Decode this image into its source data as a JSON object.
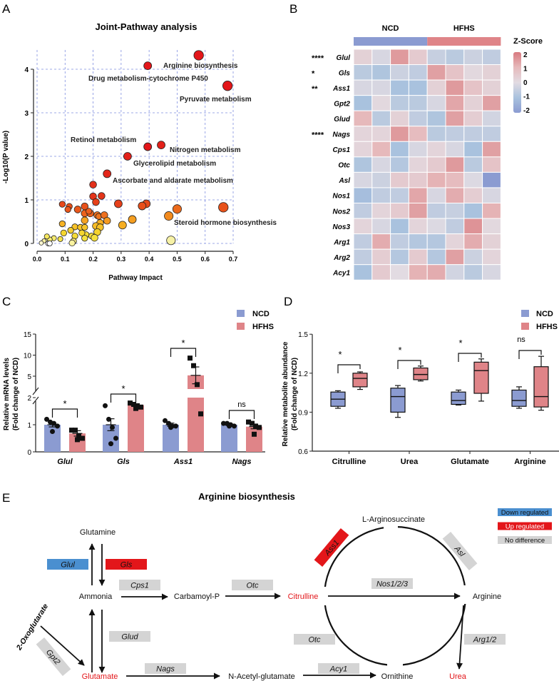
{
  "panel_labels": {
    "a": "A",
    "b": "B",
    "c": "C",
    "d": "D",
    "e": "E"
  },
  "chart_data": [
    {
      "id": "A",
      "type": "scatter",
      "title": "Joint-Pathway analysis",
      "xlabel": "Pathway Impact",
      "ylabel": "-Log10(P value)",
      "xlim": [
        0,
        0.7
      ],
      "ylim": [
        0,
        4.4
      ],
      "xticks": [
        "0.0",
        "0.1",
        "0.2",
        "0.3",
        "0.4",
        "0.5",
        "0.6",
        "0.7"
      ],
      "yticks": [
        "0",
        "1",
        "2",
        "3",
        "4"
      ],
      "grid": true,
      "points": [
        {
          "x": 0.577,
          "y": 4.32,
          "size": 5,
          "color": "#e3161a",
          "label": "Arginine biosynthesis"
        },
        {
          "x": 0.395,
          "y": 4.08,
          "size": 4,
          "color": "#e3161a",
          "label": "Drug metabolism-cytochrome P450"
        },
        {
          "x": 0.68,
          "y": 3.62,
          "size": 5,
          "color": "#e3161a",
          "label": "Pyruvate metabolism"
        },
        {
          "x": 0.395,
          "y": 2.22,
          "size": 4,
          "color": "#e3161a",
          "label": "Retinol metabolism"
        },
        {
          "x": 0.443,
          "y": 2.26,
          "size": 4,
          "color": "#e3211a",
          "label": "Nitrogen metabolism"
        },
        {
          "x": 0.323,
          "y": 2.0,
          "size": 4,
          "color": "#e3211a",
          "label": "Glycerolipid metabolism"
        },
        {
          "x": 0.25,
          "y": 1.6,
          "size": 4,
          "color": "#e3261a",
          "label": "Ascorbate and aldarate metabolism"
        },
        {
          "x": 0.665,
          "y": 0.83,
          "size": 5,
          "color": "#e8521a",
          "label": "Steroid hormone biosynthesis"
        },
        {
          "x": 0.2,
          "y": 1.35,
          "size": 3.5,
          "color": "#e3301a"
        },
        {
          "x": 0.2,
          "y": 1.08,
          "size": 3.5,
          "color": "#e3341a"
        },
        {
          "x": 0.23,
          "y": 1.09,
          "size": 3.5,
          "color": "#e3341a"
        },
        {
          "x": 0.21,
          "y": 0.95,
          "size": 3.5,
          "color": "#e6401a"
        },
        {
          "x": 0.29,
          "y": 0.91,
          "size": 4,
          "color": "#e6401a"
        },
        {
          "x": 0.39,
          "y": 0.91,
          "size": 4,
          "color": "#e6481a"
        },
        {
          "x": 0.375,
          "y": 0.86,
          "size": 4,
          "color": "#e84e1a"
        },
        {
          "x": 0.5,
          "y": 0.79,
          "size": 4.5,
          "color": "#ec6a1c"
        },
        {
          "x": 0.47,
          "y": 0.63,
          "size": 4.5,
          "color": "#f28a1e"
        },
        {
          "x": 0.34,
          "y": 0.55,
          "size": 4,
          "color": "#f59e20"
        },
        {
          "x": 0.305,
          "y": 0.42,
          "size": 4,
          "color": "#f6ae22"
        },
        {
          "x": 0.478,
          "y": 0.07,
          "size": 4.5,
          "color": "#f6f1a6"
        },
        {
          "x": 0.09,
          "y": 0.9,
          "size": 3,
          "color": "#e8481a"
        },
        {
          "x": 0.115,
          "y": 0.85,
          "size": 3,
          "color": "#e8501a"
        },
        {
          "x": 0.11,
          "y": 0.78,
          "size": 3,
          "color": "#ea561c"
        },
        {
          "x": 0.145,
          "y": 0.78,
          "size": 3.5,
          "color": "#ea581c"
        },
        {
          "x": 0.17,
          "y": 0.85,
          "size": 3.5,
          "color": "#e8501a"
        },
        {
          "x": 0.17,
          "y": 0.69,
          "size": 3.5,
          "color": "#ec621c"
        },
        {
          "x": 0.19,
          "y": 0.69,
          "size": 3.5,
          "color": "#ec621c"
        },
        {
          "x": 0.185,
          "y": 0.74,
          "size": 3,
          "color": "#ec5e1c"
        },
        {
          "x": 0.215,
          "y": 0.65,
          "size": 3.5,
          "color": "#ee701e"
        },
        {
          "x": 0.22,
          "y": 0.62,
          "size": 3,
          "color": "#ef741e"
        },
        {
          "x": 0.24,
          "y": 0.65,
          "size": 3.5,
          "color": "#ee701e"
        },
        {
          "x": 0.25,
          "y": 0.52,
          "size": 3.5,
          "color": "#f59a20"
        },
        {
          "x": 0.17,
          "y": 0.53,
          "size": 3.5,
          "color": "#f5a221"
        },
        {
          "x": 0.225,
          "y": 0.47,
          "size": 3.5,
          "color": "#f7b024"
        },
        {
          "x": 0.21,
          "y": 0.4,
          "size": 3.5,
          "color": "#f7bc26"
        },
        {
          "x": 0.225,
          "y": 0.37,
          "size": 3.5,
          "color": "#f7c228"
        },
        {
          "x": 0.215,
          "y": 0.26,
          "size": 3.5,
          "color": "#f5d22c"
        },
        {
          "x": 0.09,
          "y": 0.45,
          "size": 3,
          "color": "#f7b324"
        },
        {
          "x": 0.135,
          "y": 0.38,
          "size": 3,
          "color": "#f7c228"
        },
        {
          "x": 0.155,
          "y": 0.37,
          "size": 3,
          "color": "#f7c428"
        },
        {
          "x": 0.17,
          "y": 0.37,
          "size": 3,
          "color": "#f7c428"
        },
        {
          "x": 0.12,
          "y": 0.3,
          "size": 3,
          "color": "#f5cf2e"
        },
        {
          "x": 0.095,
          "y": 0.24,
          "size": 3,
          "color": "#f5d630"
        },
        {
          "x": 0.135,
          "y": 0.17,
          "size": 3,
          "color": "#f5dc36"
        },
        {
          "x": 0.175,
          "y": 0.2,
          "size": 3,
          "color": "#f5dc36"
        },
        {
          "x": 0.16,
          "y": 0.24,
          "size": 3,
          "color": "#f5d630"
        },
        {
          "x": 0.195,
          "y": 0.17,
          "size": 3,
          "color": "#f5de3a"
        },
        {
          "x": 0.205,
          "y": 0.13,
          "size": 3.5,
          "color": "#f5e03c"
        },
        {
          "x": 0.17,
          "y": 0.12,
          "size": 3,
          "color": "#f5e23e"
        },
        {
          "x": 0.13,
          "y": 0.05,
          "size": 3,
          "color": "#f7e87a"
        },
        {
          "x": 0.125,
          "y": 0.01,
          "size": 3,
          "color": "#fbf3a0"
        },
        {
          "x": 0.083,
          "y": 0.1,
          "size": 2.5,
          "color": "#f5e44a"
        },
        {
          "x": 0.06,
          "y": 0.12,
          "size": 2.5,
          "color": "#f7ec70"
        },
        {
          "x": 0.045,
          "y": 0.09,
          "size": 2.5,
          "color": "#f7ec70"
        },
        {
          "x": 0.035,
          "y": 0.16,
          "size": 2.5,
          "color": "#f7e860"
        },
        {
          "x": 0.025,
          "y": 0.06,
          "size": 2,
          "color": "#f9f0a0"
        },
        {
          "x": 0.015,
          "y": 0.01,
          "size": 2,
          "color": "#fff9d0"
        },
        {
          "x": 0.04,
          "y": 0.0,
          "size": 2.5,
          "color": "#ffffff"
        },
        {
          "x": 0.045,
          "y": 0.0,
          "size": 2.5,
          "color": "#ffffff"
        }
      ]
    },
    {
      "id": "B",
      "type": "heatmap",
      "groups": [
        {
          "name": "NCD",
          "color": "#8b9bd1",
          "n": 4
        },
        {
          "name": "HFHS",
          "color": "#df8488",
          "n": 4
        }
      ],
      "legend_title": "Z-Score",
      "scale_ticks": [
        "2",
        "1",
        "0",
        "-1",
        "-2"
      ],
      "zlim": [
        -2,
        2
      ],
      "rows": [
        {
          "gene": "Glul",
          "sig": "****",
          "z": [
            0.3,
            -0.2,
            1.5,
            0.5,
            -0.5,
            -0.7,
            -0.4,
            -0.6
          ]
        },
        {
          "gene": "Gls",
          "sig": "*",
          "z": [
            -0.7,
            -0.9,
            -0.4,
            -0.6,
            1.4,
            0.7,
            0.1,
            0.3
          ]
        },
        {
          "gene": "Ass1",
          "sig": "**",
          "z": [
            -0.2,
            -0.2,
            -1.0,
            -1.0,
            0.3,
            1.5,
            0.7,
            0.3
          ]
        },
        {
          "gene": "Gpt2",
          "sig": "",
          "z": [
            -1.0,
            0.1,
            -0.7,
            -0.7,
            -0.2,
            1.3,
            0.3,
            1.4
          ]
        },
        {
          "gene": "Glud",
          "sig": "",
          "z": [
            1.0,
            -0.7,
            0.3,
            -0.6,
            -0.9,
            1.4,
            0.4,
            -0.3
          ]
        },
        {
          "gene": "Nags",
          "sig": "****",
          "z": [
            0.2,
            0.2,
            1.5,
            0.9,
            -0.7,
            -0.6,
            -0.6,
            -0.6
          ]
        },
        {
          "gene": "Cps1",
          "sig": "",
          "z": [
            0.2,
            1.0,
            -1.0,
            -0.2,
            0.2,
            -0.2,
            -1.0,
            1.4
          ]
        },
        {
          "gene": "Otc",
          "sig": "",
          "z": [
            -0.9,
            -0.2,
            -0.8,
            0.2,
            0.5,
            1.5,
            -0.7,
            0.7
          ]
        },
        {
          "gene": "Asl",
          "sig": "",
          "z": [
            -0.2,
            -0.4,
            0.5,
            0.5,
            1.1,
            0.9,
            -0.1,
            -2.0
          ]
        },
        {
          "gene": "Nos1",
          "sig": "",
          "z": [
            -1.1,
            -0.6,
            -0.6,
            1.3,
            -0.2,
            1.2,
            0.4,
            -0.2
          ]
        },
        {
          "gene": "Nos2",
          "sig": "",
          "z": [
            -0.6,
            0.2,
            0.5,
            1.4,
            -0.6,
            -0.5,
            -1.0,
            1.1
          ]
        },
        {
          "gene": "Nos3",
          "sig": "",
          "z": [
            0.2,
            -0.2,
            -1.0,
            0.2,
            -0.1,
            -0.6,
            1.6,
            0.1
          ]
        },
        {
          "gene": "Arg1",
          "sig": "",
          "z": [
            -0.6,
            1.2,
            -0.6,
            -0.8,
            -0.8,
            0.2,
            1.2,
            0.3
          ]
        },
        {
          "gene": "Arg2",
          "sig": "",
          "z": [
            -0.6,
            0.4,
            -0.8,
            0.5,
            -0.8,
            1.4,
            -0.4,
            0.2
          ]
        },
        {
          "gene": "Acy1",
          "sig": "",
          "z": [
            -1.0,
            0.5,
            0.0,
            1.1,
            1.2,
            -0.3,
            -0.7,
            -0.2
          ]
        }
      ]
    },
    {
      "id": "C",
      "type": "bar",
      "ylabel": [
        "Relative mRNA levels",
        "(Fold change of NCD)"
      ],
      "categories": [
        "Glul",
        "Gls",
        "Ass1",
        "Nags"
      ],
      "yticks_lower": [
        "0",
        "1",
        "2"
      ],
      "yticks_upper": [
        "5",
        "10",
        "15"
      ],
      "axis_break": [
        2,
        2.5
      ],
      "legend": [
        {
          "name": "NCD",
          "color": "#8b9bd1"
        },
        {
          "name": "HFHS",
          "color": "#df8488"
        }
      ],
      "series": [
        {
          "name": "NCD",
          "values": [
            1.0,
            1.0,
            1.0,
            1.0
          ],
          "sem": [
            0.08,
            0.22,
            0.06,
            0.03
          ],
          "points": [
            [
              1.2,
              1.1,
              1.05,
              0.95,
              0.75
            ],
            [
              1.7,
              1.2,
              0.9,
              0.5,
              0.3
            ],
            [
              1.15,
              1.05,
              0.95,
              0.95,
              0.9
            ],
            [
              1.05,
              1.05,
              1.0,
              0.95,
              0.95
            ]
          ]
        },
        {
          "name": "HFHS",
          "values": [
            0.68,
            1.72,
            5.2,
            0.93
          ],
          "sem": [
            0.1,
            0.04,
            2.0,
            0.08
          ],
          "points": [
            [
              0.8,
              0.8,
              0.6,
              0.5,
              0.45
            ],
            [
              1.8,
              1.75,
              1.7,
              1.65,
              1.6
            ],
            [
              9.3,
              7.5,
              3.0,
              1.4
            ],
            [
              1.1,
              1.05,
              0.95,
              0.9,
              0.65
            ]
          ]
        }
      ],
      "significance": [
        "*",
        "*",
        "*",
        "ns"
      ]
    },
    {
      "id": "D",
      "type": "box",
      "ylabel": [
        "Relative metabolite abundance",
        "(Fold change of NCD)"
      ],
      "categories": [
        "Citrulline",
        "Urea",
        "Glutamate",
        "Arginine"
      ],
      "ylim": [
        0.6,
        1.5
      ],
      "yticks": [
        "0.6",
        "0.9",
        "1.2",
        "1.5"
      ],
      "legend": [
        {
          "name": "NCD",
          "color": "#8b9bd1"
        },
        {
          "name": "HFHS",
          "color": "#df8488"
        }
      ],
      "series": [
        {
          "name": "NCD",
          "boxes": [
            {
              "min": 0.93,
              "q1": 0.945,
              "median": 1.0,
              "q3": 1.055,
              "max": 1.065
            },
            {
              "min": 0.86,
              "q1": 0.9,
              "median": 1.02,
              "q3": 1.085,
              "max": 1.105
            },
            {
              "min": 0.955,
              "q1": 0.96,
              "median": 0.99,
              "q3": 1.055,
              "max": 1.07
            },
            {
              "min": 0.93,
              "q1": 0.945,
              "median": 0.99,
              "q3": 1.07,
              "max": 1.095
            }
          ]
        },
        {
          "name": "HFHS",
          "boxes": [
            {
              "min": 1.075,
              "q1": 1.095,
              "median": 1.16,
              "q3": 1.2,
              "max": 1.21
            },
            {
              "min": 1.14,
              "q1": 1.15,
              "median": 1.19,
              "q3": 1.24,
              "max": 1.255
            },
            {
              "min": 0.985,
              "q1": 1.045,
              "median": 1.22,
              "q3": 1.285,
              "max": 1.31
            },
            {
              "min": 0.915,
              "q1": 0.94,
              "median": 1.02,
              "q3": 1.25,
              "max": 1.33
            }
          ]
        }
      ],
      "significance": [
        "*",
        "*",
        "*",
        "ns"
      ]
    }
  ],
  "pathway": {
    "title": "Arginine biosynthesis",
    "legend": [
      {
        "label": "Down regulated",
        "color": "#4a8fd0"
      },
      {
        "label": "Up regulated",
        "color": "#e3161a"
      },
      {
        "label": "No difference",
        "color": "#d4d4d4"
      }
    ],
    "metabolites": {
      "glutamine": "Glutamine",
      "ammonia": "Ammonia",
      "glutamate": "Glutamate",
      "carbamoyl_p": "Carbamoyl-P",
      "citrulline": "Citrulline",
      "arginine": "Arginine",
      "arginosuccinate": "L-Arginosuccinate",
      "n_acetyl_glutamate": "N-Acetyl-glutamate",
      "ornithine": "Ornithine",
      "urea": "Urea",
      "oxoglutarate": "2-Oxoglutarate"
    },
    "changed_metabolite_color": "#e3161a",
    "enzymes": {
      "glul": {
        "label": "Glul",
        "status": "down"
      },
      "gls": {
        "label": "Gls",
        "status": "up"
      },
      "cps1": {
        "label": "Cps1",
        "status": "none"
      },
      "otc1": {
        "label": "Otc",
        "status": "none"
      },
      "nos": {
        "label": "Nos1/2/3",
        "status": "none"
      },
      "glud": {
        "label": "Glud",
        "status": "none"
      },
      "otc2": {
        "label": "Otc",
        "status": "none"
      },
      "arg": {
        "label": "Arg1/2",
        "status": "none"
      },
      "nags": {
        "label": "Nags",
        "status": "none"
      },
      "acy1": {
        "label": "Acy1",
        "status": "none"
      },
      "ass1": {
        "label": "Ass1",
        "status": "up"
      },
      "asl": {
        "label": "Asl",
        "status": "none"
      },
      "gpt2": {
        "label": "Gpt2",
        "status": "none"
      }
    }
  }
}
